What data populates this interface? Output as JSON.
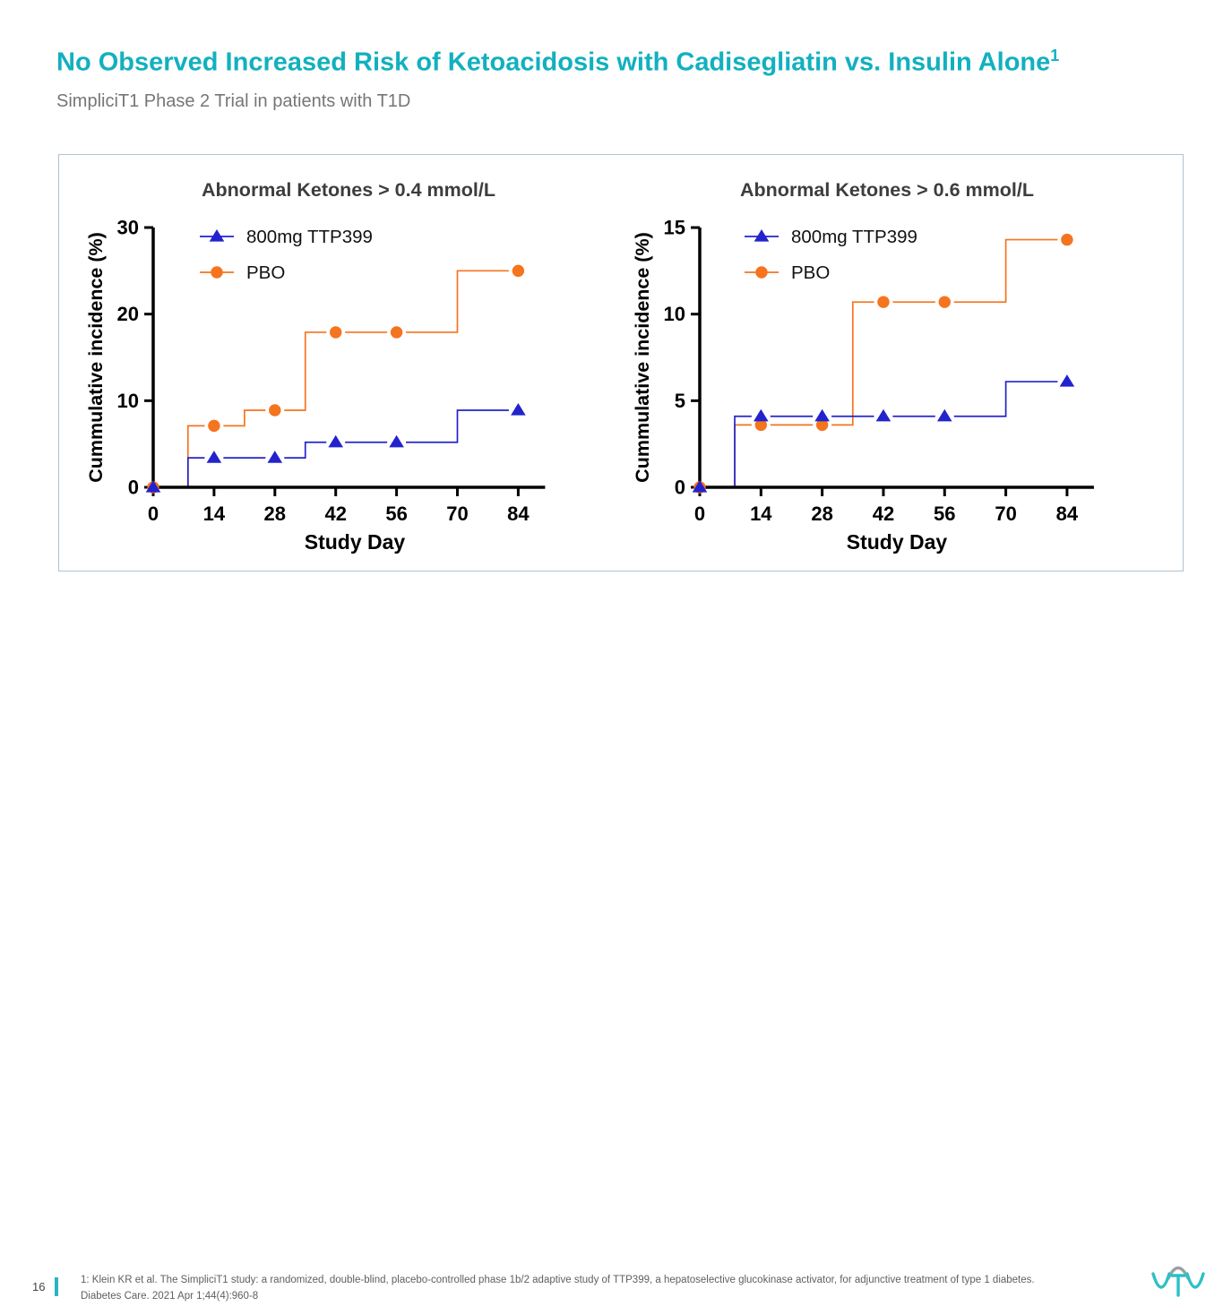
{
  "slide": {
    "title": "No Observed Increased Risk of Ketoacidosis with Cadisegliatin vs. Insulin Alone",
    "title_superscript": "1",
    "subtitle": "SimpliciT1 Phase 2 Trial in patients with T1D",
    "page_number": "16",
    "footnote_line1": "1: Klein KR et al. The SimpliciT1 study: a randomized, double-blind, placebo-controlled phase 1b/2 adaptive study of TTP399, a hepatoselective glucokinase activator, for adjunctive treatment of type 1",
    "footnote_line2": "diabetes. Diabetes Care. 2021 Apr 1;44(4):960-8",
    "logo_text": "vTv"
  },
  "colors": {
    "title_teal": "#12b0bf",
    "subtitle_gray": "#767676",
    "series_blue": "#2323cd",
    "series_orange": "#f5741e",
    "panel_border": "#aec3d2",
    "chart_title_gray": "#3d3d3d",
    "axis_black": "#000000",
    "footnote_gray": "#5f5f5f",
    "accent_bar_teal": "#2ab5c0",
    "logo_teal": "#2cc0c5",
    "logo_gray": "#9aa0a3"
  },
  "chart_data": [
    {
      "type": "line",
      "subtype": "step-cumulative-incidence",
      "title": "Abnormal Ketones > 0.4 mmol/L",
      "xlabel": "Study Day",
      "ylabel": "Cummulative incidence (%)",
      "xlim": [
        0,
        90
      ],
      "ylim": [
        0,
        30
      ],
      "xticks": [
        0,
        14,
        28,
        42,
        56,
        70,
        84
      ],
      "yticks": [
        0,
        10,
        20,
        30
      ],
      "grid": false,
      "legend_position": "top-left-inside",
      "series": [
        {
          "name": "800mg TTP399",
          "color": "#2323cd",
          "marker": "triangle",
          "steps": [
            [
              0,
              0
            ],
            [
              8,
              0
            ],
            [
              8,
              3.4
            ],
            [
              35,
              3.4
            ],
            [
              35,
              5.2
            ],
            [
              70,
              5.2
            ],
            [
              70,
              8.9
            ],
            [
              84,
              8.9
            ]
          ],
          "markers": [
            [
              0,
              0
            ],
            [
              14,
              3.4
            ],
            [
              28,
              3.4
            ],
            [
              42,
              5.2
            ],
            [
              56,
              5.2
            ],
            [
              84,
              8.9
            ]
          ]
        },
        {
          "name": "PBO",
          "color": "#f5741e",
          "marker": "circle",
          "steps": [
            [
              0,
              0
            ],
            [
              8,
              0
            ],
            [
              8,
              7.1
            ],
            [
              21,
              7.1
            ],
            [
              21,
              8.9
            ],
            [
              35,
              8.9
            ],
            [
              35,
              17.9
            ],
            [
              70,
              17.9
            ],
            [
              70,
              25
            ],
            [
              84,
              25
            ]
          ],
          "markers": [
            [
              0,
              0
            ],
            [
              14,
              7.1
            ],
            [
              28,
              8.9
            ],
            [
              42,
              17.9
            ],
            [
              56,
              17.9
            ],
            [
              84,
              25
            ]
          ]
        }
      ]
    },
    {
      "type": "line",
      "subtype": "step-cumulative-incidence",
      "title": "Abnormal Ketones > 0.6 mmol/L",
      "xlabel": "Study Day",
      "ylabel": "Cummulative incidence (%)",
      "xlim": [
        0,
        90
      ],
      "ylim": [
        0,
        15
      ],
      "xticks": [
        0,
        14,
        28,
        42,
        56,
        70,
        84
      ],
      "yticks": [
        0,
        5,
        10,
        15
      ],
      "grid": false,
      "legend_position": "top-left-inside",
      "series": [
        {
          "name": "800mg TTP399",
          "color": "#2323cd",
          "marker": "triangle",
          "steps": [
            [
              0,
              0
            ],
            [
              8,
              0
            ],
            [
              8,
              4.1
            ],
            [
              70,
              4.1
            ],
            [
              70,
              6.1
            ],
            [
              84,
              6.1
            ]
          ],
          "markers": [
            [
              0,
              0
            ],
            [
              14,
              4.1
            ],
            [
              28,
              4.1
            ],
            [
              42,
              4.1
            ],
            [
              56,
              4.1
            ],
            [
              84,
              6.1
            ]
          ]
        },
        {
          "name": "PBO",
          "color": "#f5741e",
          "marker": "circle",
          "steps": [
            [
              0,
              0
            ],
            [
              8,
              0
            ],
            [
              8,
              3.6
            ],
            [
              35,
              3.6
            ],
            [
              35,
              10.7
            ],
            [
              70,
              10.7
            ],
            [
              70,
              14.3
            ],
            [
              84,
              14.3
            ]
          ],
          "markers": [
            [
              0,
              0
            ],
            [
              14,
              3.6
            ],
            [
              28,
              3.6
            ],
            [
              42,
              10.7
            ],
            [
              56,
              10.7
            ],
            [
              84,
              14.3
            ]
          ]
        }
      ]
    }
  ]
}
